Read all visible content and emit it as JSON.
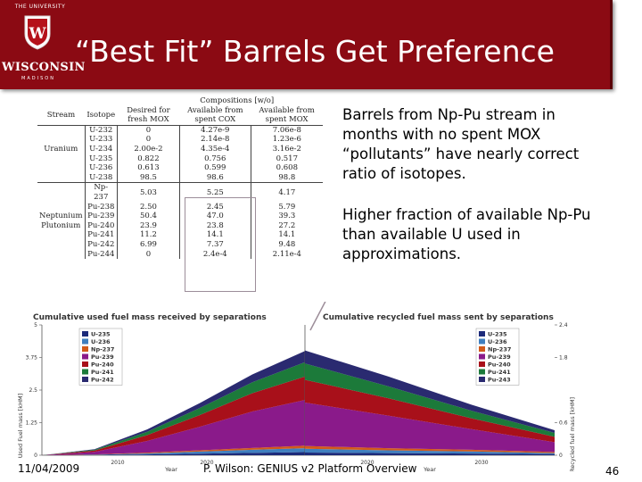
{
  "logo": {
    "top": "THE UNIVERSITY",
    "name": "WISCONSIN",
    "city": "MADISON"
  },
  "title": "“Best Fit” Barrels Get Preference",
  "table": {
    "header_group": "Compositions [w/o]",
    "columns": [
      "Stream",
      "Isotope",
      "Desired for fresh MOX",
      "Available from spent COX",
      "Available from spent MOX"
    ],
    "rows": [
      [
        "",
        "U-232",
        "0",
        "4.27e-9",
        "7.06e-8"
      ],
      [
        "",
        "U-233",
        "0",
        "2.14e-8",
        "1.23e-6"
      ],
      [
        "Uranium",
        "U-234",
        "2.00e-2",
        "4.35e-4",
        "3.16e-2"
      ],
      [
        "",
        "U-235",
        "0.822",
        "0.756",
        "0.517"
      ],
      [
        "",
        "U-236",
        "0.613",
        "0.599",
        "0.608"
      ],
      [
        "",
        "U-238",
        "98.5",
        "98.6",
        "98.8"
      ],
      [
        "",
        "Np-237",
        "5.03",
        "5.25",
        "4.17"
      ],
      [
        "",
        "Pu-238",
        "2.50",
        "2.45",
        "5.79"
      ],
      [
        "Neptunium",
        "Pu-239",
        "50.4",
        "47.0",
        "39.3"
      ],
      [
        "Plutonium",
        "Pu-240",
        "23.9",
        "23.8",
        "27.2"
      ],
      [
        "",
        "Pu-241",
        "11.2",
        "14.1",
        "14.1"
      ],
      [
        "",
        "Pu-242",
        "6.99",
        "7.37",
        "9.48"
      ],
      [
        "",
        "Pu-244",
        "0",
        "2.4e-4",
        "2.11e-4"
      ]
    ]
  },
  "bullets": [
    "Barrels from Np-Pu stream in months with no spent MOX “pollutants” have nearly correct ratio of isotopes.",
    "Higher fraction of available Np-Pu than available U used in approximations."
  ],
  "chart_data": [
    {
      "type": "area",
      "title": "Cumulative used fuel mass received by separations",
      "xlabel": "Year",
      "ylabel": "Used Fuel mass [kHM]",
      "x_ticks": [
        "2010",
        "2020",
        "2030"
      ],
      "y_ticks": [
        "0",
        "1.25",
        "2.5",
        "3.75",
        "5"
      ],
      "ylim": [
        0,
        5
      ],
      "x": [
        2010,
        2015,
        2020,
        2025,
        2030,
        2035
      ],
      "series": [
        {
          "name": "U-235",
          "color": "#1c2a7a",
          "values": [
            0,
            0.01,
            0.03,
            0.06,
            0.09,
            0.12
          ]
        },
        {
          "name": "U-236",
          "color": "#3f7fbf",
          "values": [
            0,
            0.01,
            0.04,
            0.08,
            0.12,
            0.15
          ]
        },
        {
          "name": "Np-237",
          "color": "#d25a1a",
          "values": [
            0,
            0.01,
            0.03,
            0.05,
            0.07,
            0.1
          ]
        },
        {
          "name": "Pu-239",
          "color": "#8a1a8a",
          "values": [
            0,
            0.1,
            0.45,
            0.9,
            1.4,
            1.75
          ]
        },
        {
          "name": "Pu-240",
          "color": "#a8101a",
          "values": [
            0,
            0.05,
            0.22,
            0.45,
            0.7,
            0.9
          ]
        },
        {
          "name": "Pu-241",
          "color": "#1c7a3a",
          "values": [
            0,
            0.03,
            0.13,
            0.27,
            0.42,
            0.55
          ]
        },
        {
          "name": "Pu-242",
          "color": "#2a2a70",
          "values": [
            0,
            0.02,
            0.09,
            0.19,
            0.3,
            0.43
          ]
        }
      ],
      "legend": "top-left"
    },
    {
      "type": "area",
      "title": "Cumulative recycled fuel mass sent by separations",
      "xlabel": "Year",
      "ylabel": "Recycled fuel mass [kHM]",
      "x_ticks": [
        "2010",
        "2020",
        "2030"
      ],
      "y_ticks": [
        "0",
        "0.6",
        "1.8",
        "2.4"
      ],
      "ylim": [
        0,
        2.4
      ],
      "x": [
        2035,
        2040,
        2045,
        2050
      ],
      "series": [
        {
          "name": "U-235",
          "color": "#1c2a7a",
          "values": [
            0.05,
            0.04,
            0.03,
            0.02
          ]
        },
        {
          "name": "U-236",
          "color": "#3f7fbf",
          "values": [
            0.07,
            0.05,
            0.04,
            0.02
          ]
        },
        {
          "name": "Np-237",
          "color": "#d25a1a",
          "values": [
            0.05,
            0.04,
            0.03,
            0.02
          ]
        },
        {
          "name": "Pu-239",
          "color": "#8a1a8a",
          "values": [
            0.8,
            0.6,
            0.38,
            0.18
          ]
        },
        {
          "name": "Pu-240",
          "color": "#a8101a",
          "values": [
            0.42,
            0.32,
            0.2,
            0.1
          ]
        },
        {
          "name": "Pu-241",
          "color": "#1c7a3a",
          "values": [
            0.3,
            0.22,
            0.14,
            0.07
          ]
        },
        {
          "name": "Pu-243",
          "color": "#2a2a70",
          "values": [
            0.24,
            0.18,
            0.11,
            0.05
          ]
        }
      ],
      "legend": "top-right"
    }
  ],
  "footer": {
    "date": "11/04/2009",
    "center": "P. Wilson: GENIUS v2 Platform Overview",
    "page": "46"
  }
}
